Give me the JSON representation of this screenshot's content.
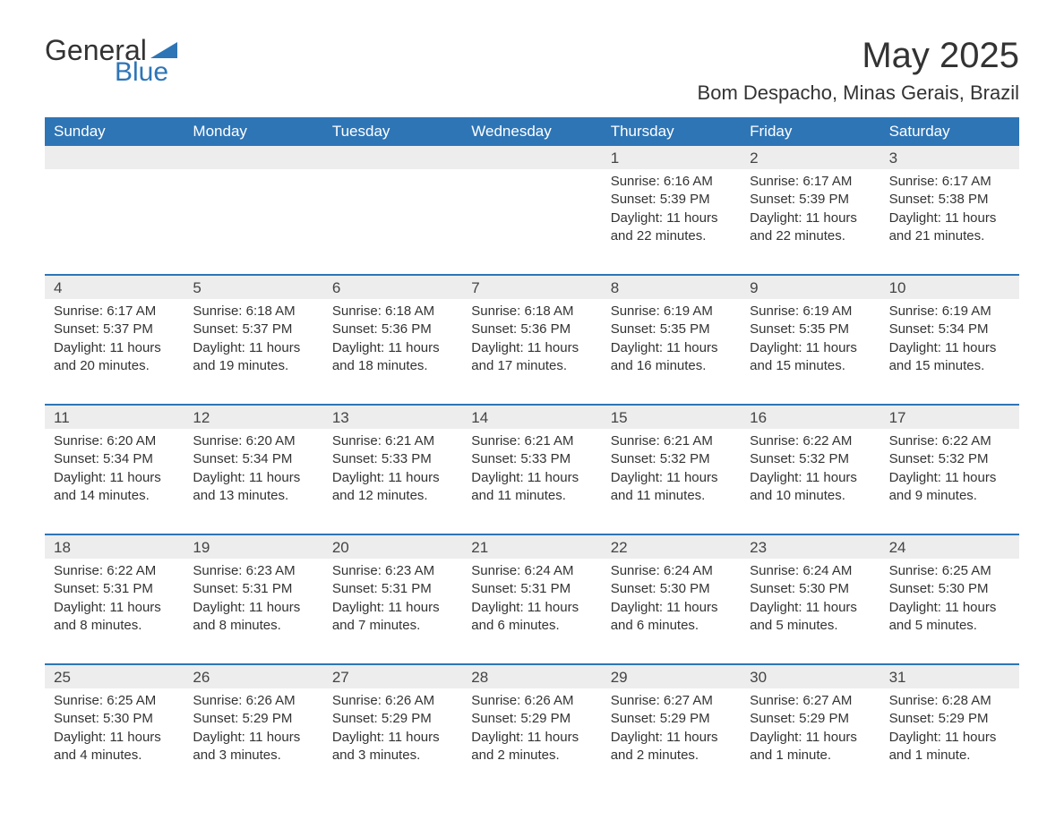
{
  "logo": {
    "text1": "General",
    "text2": "Blue"
  },
  "title": "May 2025",
  "location": "Bom Despacho, Minas Gerais, Brazil",
  "colors": {
    "header_bg": "#2e75b6",
    "header_text": "#ffffff",
    "daynum_bg": "#ededed",
    "border": "#2e75b6",
    "text": "#333333",
    "logo_blue": "#2e75b6"
  },
  "dayHeaders": [
    "Sunday",
    "Monday",
    "Tuesday",
    "Wednesday",
    "Thursday",
    "Friday",
    "Saturday"
  ],
  "weeks": [
    [
      null,
      null,
      null,
      null,
      {
        "n": "1",
        "sunrise": "6:16 AM",
        "sunset": "5:39 PM",
        "daylight": "11 hours and 22 minutes."
      },
      {
        "n": "2",
        "sunrise": "6:17 AM",
        "sunset": "5:39 PM",
        "daylight": "11 hours and 22 minutes."
      },
      {
        "n": "3",
        "sunrise": "6:17 AM",
        "sunset": "5:38 PM",
        "daylight": "11 hours and 21 minutes."
      }
    ],
    [
      {
        "n": "4",
        "sunrise": "6:17 AM",
        "sunset": "5:37 PM",
        "daylight": "11 hours and 20 minutes."
      },
      {
        "n": "5",
        "sunrise": "6:18 AM",
        "sunset": "5:37 PM",
        "daylight": "11 hours and 19 minutes."
      },
      {
        "n": "6",
        "sunrise": "6:18 AM",
        "sunset": "5:36 PM",
        "daylight": "11 hours and 18 minutes."
      },
      {
        "n": "7",
        "sunrise": "6:18 AM",
        "sunset": "5:36 PM",
        "daylight": "11 hours and 17 minutes."
      },
      {
        "n": "8",
        "sunrise": "6:19 AM",
        "sunset": "5:35 PM",
        "daylight": "11 hours and 16 minutes."
      },
      {
        "n": "9",
        "sunrise": "6:19 AM",
        "sunset": "5:35 PM",
        "daylight": "11 hours and 15 minutes."
      },
      {
        "n": "10",
        "sunrise": "6:19 AM",
        "sunset": "5:34 PM",
        "daylight": "11 hours and 15 minutes."
      }
    ],
    [
      {
        "n": "11",
        "sunrise": "6:20 AM",
        "sunset": "5:34 PM",
        "daylight": "11 hours and 14 minutes."
      },
      {
        "n": "12",
        "sunrise": "6:20 AM",
        "sunset": "5:34 PM",
        "daylight": "11 hours and 13 minutes."
      },
      {
        "n": "13",
        "sunrise": "6:21 AM",
        "sunset": "5:33 PM",
        "daylight": "11 hours and 12 minutes."
      },
      {
        "n": "14",
        "sunrise": "6:21 AM",
        "sunset": "5:33 PM",
        "daylight": "11 hours and 11 minutes."
      },
      {
        "n": "15",
        "sunrise": "6:21 AM",
        "sunset": "5:32 PM",
        "daylight": "11 hours and 11 minutes."
      },
      {
        "n": "16",
        "sunrise": "6:22 AM",
        "sunset": "5:32 PM",
        "daylight": "11 hours and 10 minutes."
      },
      {
        "n": "17",
        "sunrise": "6:22 AM",
        "sunset": "5:32 PM",
        "daylight": "11 hours and 9 minutes."
      }
    ],
    [
      {
        "n": "18",
        "sunrise": "6:22 AM",
        "sunset": "5:31 PM",
        "daylight": "11 hours and 8 minutes."
      },
      {
        "n": "19",
        "sunrise": "6:23 AM",
        "sunset": "5:31 PM",
        "daylight": "11 hours and 8 minutes."
      },
      {
        "n": "20",
        "sunrise": "6:23 AM",
        "sunset": "5:31 PM",
        "daylight": "11 hours and 7 minutes."
      },
      {
        "n": "21",
        "sunrise": "6:24 AM",
        "sunset": "5:31 PM",
        "daylight": "11 hours and 6 minutes."
      },
      {
        "n": "22",
        "sunrise": "6:24 AM",
        "sunset": "5:30 PM",
        "daylight": "11 hours and 6 minutes."
      },
      {
        "n": "23",
        "sunrise": "6:24 AM",
        "sunset": "5:30 PM",
        "daylight": "11 hours and 5 minutes."
      },
      {
        "n": "24",
        "sunrise": "6:25 AM",
        "sunset": "5:30 PM",
        "daylight": "11 hours and 5 minutes."
      }
    ],
    [
      {
        "n": "25",
        "sunrise": "6:25 AM",
        "sunset": "5:30 PM",
        "daylight": "11 hours and 4 minutes."
      },
      {
        "n": "26",
        "sunrise": "6:26 AM",
        "sunset": "5:29 PM",
        "daylight": "11 hours and 3 minutes."
      },
      {
        "n": "27",
        "sunrise": "6:26 AM",
        "sunset": "5:29 PM",
        "daylight": "11 hours and 3 minutes."
      },
      {
        "n": "28",
        "sunrise": "6:26 AM",
        "sunset": "5:29 PM",
        "daylight": "11 hours and 2 minutes."
      },
      {
        "n": "29",
        "sunrise": "6:27 AM",
        "sunset": "5:29 PM",
        "daylight": "11 hours and 2 minutes."
      },
      {
        "n": "30",
        "sunrise": "6:27 AM",
        "sunset": "5:29 PM",
        "daylight": "11 hours and 1 minute."
      },
      {
        "n": "31",
        "sunrise": "6:28 AM",
        "sunset": "5:29 PM",
        "daylight": "11 hours and 1 minute."
      }
    ]
  ],
  "labels": {
    "sunrise": "Sunrise:",
    "sunset": "Sunset:",
    "daylight": "Daylight:"
  }
}
